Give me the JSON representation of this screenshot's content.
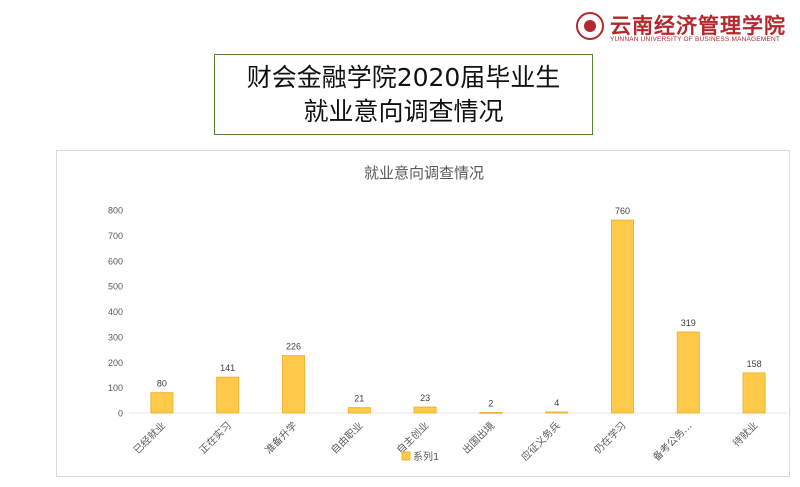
{
  "logo": {
    "name_cn": "云南经济管理学院",
    "name_en": "YUNNAN UNIVERSITY OF BUSINESS MANAGEMENT"
  },
  "slide_title": {
    "line1": "财会金融学院2020届毕业生",
    "line2": "就业意向调查情况"
  },
  "colors": {
    "bar_fill": "#FFC94A",
    "bar_stroke": "#F2B233",
    "grid": "#e6e6e6",
    "axis_text": "#595959",
    "title_border": "#548235",
    "logo": "#b3282d"
  },
  "chart_data": {
    "type": "bar",
    "title": "就业意向调查情况",
    "categories": [
      "已经就业",
      "正在实习",
      "准备升学",
      "自由职业",
      "自主创业",
      "出国出境",
      "应征义务兵",
      "仍在学习",
      "备考公务…",
      "待就业"
    ],
    "series": [
      {
        "name": "系列1",
        "values": [
          80,
          141,
          226,
          21,
          23,
          2,
          4,
          760,
          319,
          158
        ]
      }
    ],
    "ylim": [
      0,
      800
    ],
    "yticks": [
      0,
      100,
      200,
      300,
      400,
      500,
      600,
      700,
      800
    ],
    "data_labels": true,
    "legend_position": "bottom",
    "grid": false
  }
}
